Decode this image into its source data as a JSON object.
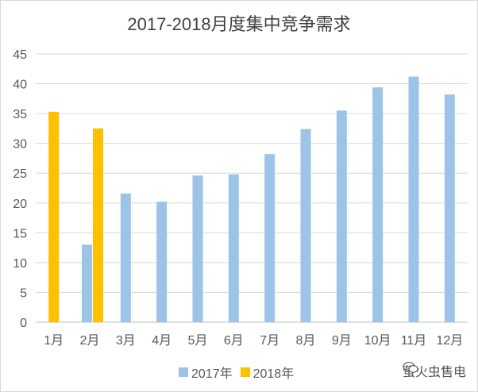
{
  "chart_data": {
    "type": "bar",
    "title": "2017-2018月度集中竞争需求",
    "categories": [
      "1月",
      "2月",
      "3月",
      "4月",
      "5月",
      "6月",
      "7月",
      "8月",
      "9月",
      "10月",
      "11月",
      "12月"
    ],
    "series": [
      {
        "name": "2017年",
        "color": "#9dc3e6",
        "values": [
          null,
          13.0,
          21.6,
          20.2,
          24.6,
          24.8,
          28.2,
          32.4,
          35.5,
          39.4,
          41.2,
          38.2
        ]
      },
      {
        "name": "2018年",
        "color": "#ffc000",
        "values": [
          35.3,
          32.5,
          null,
          null,
          null,
          null,
          null,
          null,
          null,
          null,
          null,
          null
        ]
      }
    ],
    "ylim": [
      0,
      45
    ],
    "yticks": [
      0,
      5,
      10,
      15,
      20,
      25,
      30,
      35,
      40,
      45
    ],
    "grid": true,
    "legend": "bottom"
  },
  "watermark": {
    "text": "萤火虫售电",
    "icon": "wechat-icon"
  }
}
